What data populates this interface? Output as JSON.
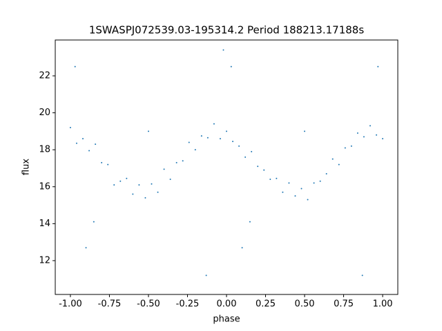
{
  "chart_data": {
    "type": "scatter",
    "title": "1SWASPJ072539.03-195314.2 Period 188213.17188s",
    "x_label": "phase",
    "y_label": "flux",
    "color": "#1f77b4",
    "x": [
      -1.0,
      -0.96,
      -0.92,
      -0.88,
      -0.84,
      -0.8,
      -0.76,
      -0.72,
      -0.68,
      -0.64,
      -0.6,
      -0.56,
      -0.52,
      -0.48,
      -0.44,
      -0.4,
      -0.36,
      -0.32,
      -0.28,
      -0.24,
      -0.2,
      -0.16,
      -0.12,
      -0.08,
      -0.04,
      0.0,
      0.04,
      0.08,
      0.12,
      0.16,
      0.2,
      0.24,
      0.28,
      0.32,
      0.36,
      0.4,
      0.44,
      0.48,
      0.52,
      0.56,
      0.6,
      0.64,
      0.68,
      0.72,
      0.76,
      0.8,
      0.84,
      0.88,
      0.92,
      0.96,
      1.0,
      -0.97,
      0.03,
      0.97,
      -0.02,
      -0.5,
      0.5,
      -0.85,
      0.15,
      -0.9,
      0.1,
      0.87,
      -0.13
    ],
    "y": [
      19.2,
      18.35,
      18.6,
      17.95,
      18.3,
      17.3,
      17.2,
      16.1,
      16.3,
      16.45,
      15.6,
      16.1,
      15.4,
      16.15,
      15.7,
      16.95,
      16.4,
      17.3,
      17.4,
      18.4,
      18.0,
      18.75,
      18.65,
      19.4,
      18.6,
      19.0,
      18.45,
      18.2,
      17.6,
      17.9,
      17.1,
      16.9,
      16.4,
      16.45,
      15.7,
      16.2,
      15.5,
      15.9,
      15.3,
      16.2,
      16.3,
      16.7,
      17.5,
      17.2,
      18.1,
      18.2,
      18.9,
      18.7,
      19.3,
      18.8,
      18.6,
      22.5,
      22.5,
      22.5,
      23.4,
      19.0,
      19.0,
      14.1,
      14.1,
      12.7,
      12.7,
      11.2,
      11.2
    ],
    "xlim": [
      -1.097,
      1.097
    ],
    "ylim": [
      10.17,
      23.94
    ],
    "xticks": [
      {
        "value": -1.0,
        "label": "-1.00"
      },
      {
        "value": -0.75,
        "label": "-0.75"
      },
      {
        "value": -0.5,
        "label": "-0.50"
      },
      {
        "value": -0.25,
        "label": "-0.25"
      },
      {
        "value": 0,
        "label": "0.00"
      },
      {
        "value": 0.25,
        "label": "0.25"
      },
      {
        "value": 0.5,
        "label": "0.50"
      },
      {
        "value": 0.75,
        "label": "0.75"
      },
      {
        "value": 1.0,
        "label": "1.00"
      }
    ],
    "yticks": [
      12,
      14,
      16,
      18,
      20,
      22
    ]
  }
}
